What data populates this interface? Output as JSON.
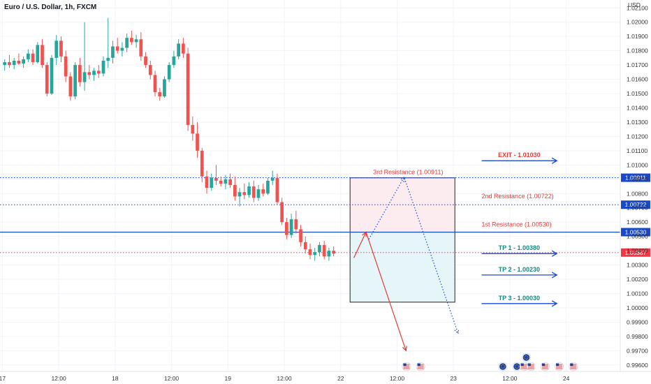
{
  "header": {
    "symbol": "Euro / U.S. Dollar, 1h, FXCM"
  },
  "chart_data": {
    "type": "candlestick",
    "title": "Euro / U.S. Dollar, 1h, FXCM",
    "y_unit": "USD",
    "ylim": [
      0.99555,
      1.02155
    ],
    "y_ticks": [
      1.021,
      1.02,
      1.019,
      1.018,
      1.017,
      1.016,
      1.015,
      1.014,
      1.013,
      1.012,
      1.011,
      1.01,
      1.009,
      1.008,
      1.007,
      1.006,
      1.005,
      1.004,
      1.003,
      1.002,
      1.001,
      1.0,
      0.999,
      0.998,
      0.997,
      0.996
    ],
    "y_tick_labels": [
      "1.02100",
      "1.02000",
      "1.01900",
      "1.01800",
      "1.01700",
      "1.01600",
      "1.01500",
      "1.01400",
      "1.01300",
      "1.01200",
      "1.01100",
      "1.01000",
      "1.00900",
      "1.00800",
      "1.00700",
      "1.00600",
      "1.00500",
      "1.00400",
      "1.00300",
      "1.00200",
      "1.00100",
      "1.00000",
      "0.99900",
      "0.99800",
      "0.99700",
      "0.99600"
    ],
    "x_ticks": [
      {
        "label": "17",
        "x": -0.5
      },
      {
        "label": "12:00",
        "x": 11.5
      },
      {
        "label": "18",
        "x": 23.5
      },
      {
        "label": "12:00",
        "x": 35.5
      },
      {
        "label": "19",
        "x": 47.5
      },
      {
        "label": "12:00",
        "x": 59.5
      },
      {
        "label": "22",
        "x": 71.5
      },
      {
        "label": "12:00",
        "x": 83.5
      },
      {
        "label": "23",
        "x": 95.5
      },
      {
        "label": "12:00",
        "x": 107.5
      },
      {
        "label": "24",
        "x": 119.5
      }
    ],
    "x_range": [
      -1,
      131
    ],
    "candles": [
      [
        1.017,
        1.0174,
        1.0166,
        1.0172
      ],
      [
        1.0172,
        1.0177,
        1.0168,
        1.017
      ],
      [
        1.017,
        1.0175,
        1.0167,
        1.0173
      ],
      [
        1.0173,
        1.0178,
        1.017,
        1.0171
      ],
      [
        1.0171,
        1.0176,
        1.0168,
        1.0174
      ],
      [
        1.0174,
        1.0181,
        1.0172,
        1.0178
      ],
      [
        1.0178,
        1.0181,
        1.017,
        1.0172
      ],
      [
        1.0172,
        1.0186,
        1.0171,
        1.0184
      ],
      [
        1.0184,
        1.0188,
        1.0168,
        1.017
      ],
      [
        1.017,
        1.0172,
        1.0148,
        1.015
      ],
      [
        1.015,
        1.0177,
        1.0149,
        1.0175
      ],
      [
        1.0175,
        1.0191,
        1.017,
        1.0187
      ],
      [
        1.0187,
        1.019,
        1.0172,
        1.0176
      ],
      [
        1.0176,
        1.018,
        1.0158,
        1.0162
      ],
      [
        1.0162,
        1.0165,
        1.0145,
        1.0148
      ],
      [
        1.0148,
        1.0172,
        1.0146,
        1.017
      ],
      [
        1.017,
        1.0175,
        1.0155,
        1.0158
      ],
      [
        1.0158,
        1.02,
        1.0152,
        1.0165
      ],
      [
        1.0165,
        1.017,
        1.016,
        1.0163
      ],
      [
        1.0163,
        1.0168,
        1.0159,
        1.0166
      ],
      [
        1.0166,
        1.017,
        1.0161,
        1.0164
      ],
      [
        1.0164,
        1.0176,
        1.0162,
        1.0173
      ],
      [
        1.0173,
        1.0203,
        1.0168,
        1.0175
      ],
      [
        1.0175,
        1.0187,
        1.0171,
        1.0183
      ],
      [
        1.0183,
        1.0189,
        1.0178,
        1.018
      ],
      [
        1.018,
        1.0186,
        1.0176,
        1.0182
      ],
      [
        1.0182,
        1.0192,
        1.0179,
        1.0189
      ],
      [
        1.0189,
        1.0194,
        1.0184,
        1.0186
      ],
      [
        1.0186,
        1.0191,
        1.0182,
        1.0188
      ],
      [
        1.0188,
        1.0193,
        1.0173,
        1.0176
      ],
      [
        1.0176,
        1.0179,
        1.0168,
        1.017
      ],
      [
        1.017,
        1.0173,
        1.016,
        1.0163
      ],
      [
        1.0163,
        1.0166,
        1.0148,
        1.0151
      ],
      [
        1.0151,
        1.0154,
        1.0145,
        1.0148
      ],
      [
        1.0148,
        1.0162,
        1.0147,
        1.016
      ],
      [
        1.016,
        1.0172,
        1.0158,
        1.017
      ],
      [
        1.017,
        1.018,
        1.0168,
        1.0176
      ],
      [
        1.0176,
        1.0188,
        1.0174,
        1.0185
      ],
      [
        1.0185,
        1.0189,
        1.0175,
        1.0178
      ],
      [
        1.0178,
        1.0182,
        1.0124,
        1.0128
      ],
      [
        1.0128,
        1.0134,
        1.0117,
        1.0122
      ],
      [
        1.0122,
        1.013,
        1.0105,
        1.011
      ],
      [
        1.011,
        1.0112,
        1.0088,
        1.0092
      ],
      [
        1.0092,
        1.0096,
        1.008,
        1.0084
      ],
      [
        1.0084,
        1.0094,
        1.0082,
        1.0091
      ],
      [
        1.0091,
        1.01,
        1.0086,
        1.0089
      ],
      [
        1.0089,
        1.0092,
        1.0085,
        1.0087
      ],
      [
        1.0087,
        1.0093,
        1.0083,
        1.009
      ],
      [
        1.009,
        1.0094,
        1.0084,
        1.0086
      ],
      [
        1.0086,
        1.0092,
        1.0075,
        1.0078
      ],
      [
        1.0078,
        1.0084,
        1.0071,
        1.0081
      ],
      [
        1.0081,
        1.0087,
        1.0076,
        1.0079
      ],
      [
        1.0079,
        1.0088,
        1.0077,
        1.0085
      ],
      [
        1.0085,
        1.0089,
        1.0074,
        1.0077
      ],
      [
        1.0077,
        1.0086,
        1.0075,
        1.0083
      ],
      [
        1.0083,
        1.0087,
        1.0078,
        1.008
      ],
      [
        1.008,
        1.0091,
        1.0079,
        1.0089
      ],
      [
        1.0089,
        1.0096,
        1.0086,
        1.0091
      ],
      [
        1.0091,
        1.0094,
        1.0072,
        1.0074
      ],
      [
        1.0074,
        1.0077,
        1.0058,
        1.006
      ],
      [
        1.006,
        1.0063,
        1.0048,
        1.0051
      ],
      [
        1.0051,
        1.0066,
        1.0049,
        1.0062
      ],
      [
        1.0062,
        1.0068,
        1.0052,
        1.0055
      ],
      [
        1.0055,
        1.0058,
        1.0043,
        1.0046
      ],
      [
        1.0046,
        1.005,
        1.0038,
        1.0041
      ],
      [
        1.0041,
        1.0045,
        1.0034,
        1.0037
      ],
      [
        1.0037,
        1.0042,
        1.0033,
        1.0039
      ],
      [
        1.0039,
        1.0046,
        1.0036,
        1.0044
      ],
      [
        1.0044,
        1.0047,
        1.0034,
        1.0036
      ],
      [
        1.0036,
        1.0042,
        1.0033,
        1.004
      ],
      [
        1.004,
        1.0043,
        1.0036,
        1.0038
      ]
    ],
    "horizontal_levels": [
      {
        "value": 1.00911,
        "tag": "1.00911",
        "label": "3rd Resistance (1.00911)",
        "style": "dotted",
        "color": "#1848cc"
      },
      {
        "value": 1.00722,
        "tag": "1.00722",
        "label": "2nd Resistance (1.00722)",
        "style": "dotted",
        "color": "#1848cc"
      },
      {
        "value": 1.0053,
        "tag": "1.00530",
        "label": "1st Resistance (1.00530)",
        "style": "solid",
        "color": "#1848cc"
      },
      {
        "value": 1.00387,
        "tag": "1.00387",
        "label": "",
        "style": "dotted",
        "color": "#f23645"
      }
    ],
    "targets": [
      {
        "label": "EXIT - 1.01030",
        "value": 1.0103,
        "color": "#e53935"
      },
      {
        "label": "TP 1 - 1.00380",
        "value": 1.0038,
        "color": "#138a80"
      },
      {
        "label": "TP 2 - 1.00230",
        "value": 1.0023,
        "color": "#138a80"
      },
      {
        "label": "TP 3 - 1.00030",
        "value": 1.0003,
        "color": "#138a80"
      }
    ],
    "zones": [
      {
        "x0": 73.5,
        "x1": 95.8,
        "y0": 1.0053,
        "y1": 1.0091,
        "fill": "#fdecef"
      },
      {
        "x0": 73.5,
        "x1": 95.8,
        "y0": 1.0004,
        "y1": 1.0053,
        "fill": "#e6f6f8"
      }
    ],
    "paths": [
      {
        "points": [
          [
            77.5,
            1.0048
          ],
          [
            85,
            1.00915
          ],
          [
            96.5,
            0.9982
          ]
        ],
        "style": "dotted",
        "color": "#1848cc"
      },
      {
        "points": [
          [
            74.3,
            1.0035
          ],
          [
            76.9,
            1.0053
          ],
          [
            85.4,
            0.997
          ]
        ],
        "style": "solid",
        "color": "#e53935"
      }
    ]
  },
  "colors": {
    "up": "#26a69a",
    "down": "#ef5350",
    "level": "#1848cc",
    "current": "#f23645",
    "target_arrow": "#1848cc"
  },
  "events": [
    {
      "x": 85.5,
      "icon": "us-flag-icon"
    },
    {
      "x": 88.5,
      "icon": "us-flag-icon"
    },
    {
      "x": 106,
      "icon": "eu-flag-icon"
    },
    {
      "x": 109,
      "icon": "eu-flag-icon"
    },
    {
      "x": 110.5,
      "icon": "us-flag-icon"
    },
    {
      "x": 112,
      "icon": "us-flag-icon"
    },
    {
      "x": 111,
      "icon": "eu-flag-icon"
    },
    {
      "x": 115,
      "icon": "us-flag-icon"
    },
    {
      "x": 118,
      "icon": "us-flag-icon"
    },
    {
      "x": 121,
      "icon": "us-flag-icon"
    }
  ]
}
